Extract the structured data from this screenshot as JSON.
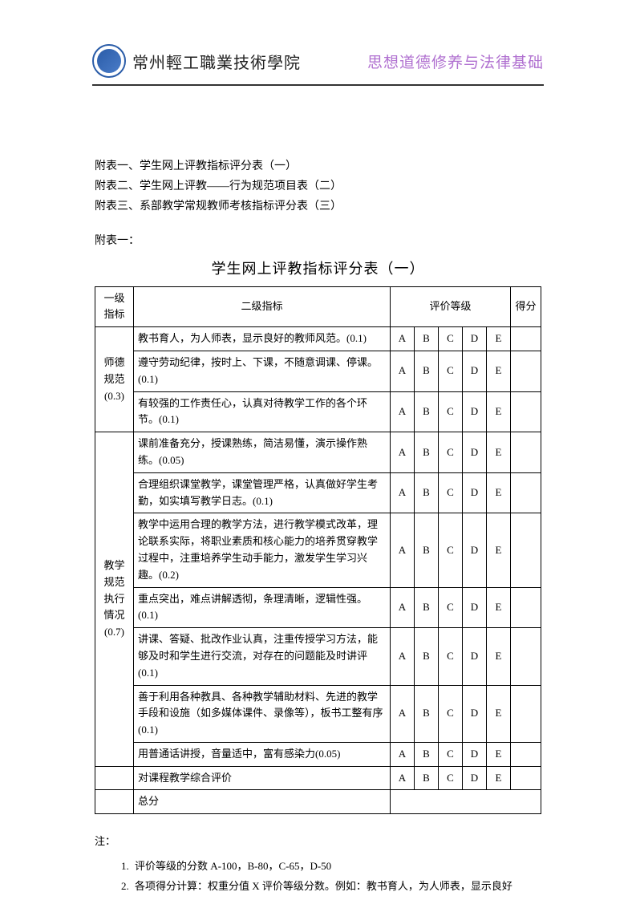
{
  "header": {
    "school_name": "常州輕工職業技術學院",
    "course_name": "思想道德修养与法律基础"
  },
  "attachments": {
    "line1": "附表一、学生网上评教指标评分表（一）",
    "line2": "附表二、学生网上评教——行为规范项目表（二）",
    "line3": "附表三、系部教学常规教师考核指标评分表（三）",
    "label": "附表一："
  },
  "table_title": "学生网上评教指标评分表（一）",
  "headers": {
    "l1": "一级指标",
    "l2": "二级指标",
    "grade": "评价等级",
    "score": "得分"
  },
  "grades": [
    "A",
    "B",
    "C",
    "D",
    "E"
  ],
  "groups": [
    {
      "label": "师德规范(0.3)",
      "rows": [
        "教书育人，为人师表，显示良好的教师风范。(0.1)",
        "遵守劳动纪律，按时上、下课，不随意调课、停课。(0.1)",
        "有较强的工作责任心，认真对待教学工作的各个环节。(0.1)"
      ]
    },
    {
      "label": "教学规范执行情况(0.7)",
      "rows": [
        "课前准备充分，授课熟练，简洁易懂，演示操作熟练。(0.05)",
        "合理组织课堂教学，课堂管理严格，认真做好学生考勤，如实填写教学日志。(0.1)",
        "教学中运用合理的教学方法，进行教学模式改革，理论联系实际，将职业素质和核心能力的培养贯穿教学过程中，注重培养学生动手能力，激发学生学习兴趣。(0.2)",
        "重点突出，难点讲解透彻，条理清晰，逻辑性强。(0.1)",
        "讲课、答疑、批改作业认真，注重传授学习方法，能够及时和学生进行交流，对存在的问题能及时讲评(0.1)",
        "善于利用各种教具、各种教学辅助材料、先进的教学手段和设施（如多媒体课件、录像等），板书工整有序(0.1)",
        "用普通话讲授，音量适中，富有感染力(0.05)"
      ]
    }
  ],
  "summary_row": "对课程教学综合评价",
  "total_row": "总分",
  "notes": {
    "label": "注：",
    "items": [
      "评价等级的分数   A-100，B-80，C-65，D-50",
      "各项得分计算：权重分值 X 评价等级分数。例如：教书育人，为人师表，显示良好"
    ]
  }
}
